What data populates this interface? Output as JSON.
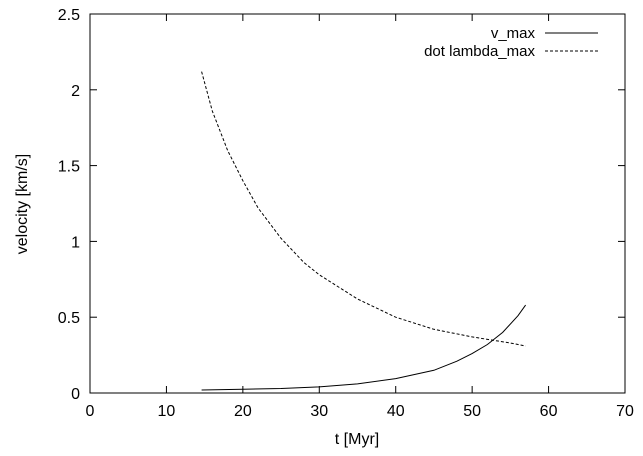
{
  "chart_data": {
    "type": "line",
    "title": "",
    "xlabel": "t [Myr]",
    "ylabel": "velocity [km/s]",
    "xlim": [
      0,
      70
    ],
    "ylim": [
      0,
      2.5
    ],
    "x_ticks": [
      0,
      10,
      20,
      30,
      40,
      50,
      60,
      70
    ],
    "y_ticks": [
      0,
      0.5,
      1,
      1.5,
      2,
      2.5
    ],
    "x_tick_labels": [
      "0",
      "10",
      "20",
      "30",
      "40",
      "50",
      "60",
      "70"
    ],
    "y_tick_labels": [
      "0",
      "0.5",
      "1",
      "1.5",
      "2",
      "2.5"
    ],
    "grid": false,
    "legend_position": "top-right",
    "series": [
      {
        "name": "v_max",
        "line_style": "solid",
        "color": "#000000",
        "x": [
          14.6,
          20,
          25,
          30,
          35,
          40,
          45,
          48,
          50,
          52,
          54,
          56,
          57
        ],
        "y": [
          0.02,
          0.025,
          0.03,
          0.04,
          0.06,
          0.095,
          0.15,
          0.21,
          0.26,
          0.32,
          0.4,
          0.51,
          0.58
        ]
      },
      {
        "name": "dot lambda_max",
        "line_style": "dashed",
        "color": "#000000",
        "x": [
          14.6,
          16,
          18,
          20,
          22,
          25,
          28,
          30,
          35,
          40,
          45,
          50,
          55,
          57
        ],
        "y": [
          2.12,
          1.86,
          1.6,
          1.4,
          1.22,
          1.02,
          0.86,
          0.78,
          0.62,
          0.5,
          0.42,
          0.37,
          0.33,
          0.31
        ]
      }
    ]
  }
}
